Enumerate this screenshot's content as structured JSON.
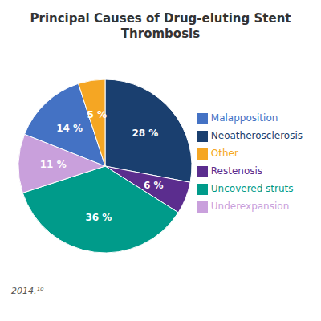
{
  "chart_data": {
    "type": "pie",
    "title": "Principal Causes of Drug-eluting Stent Thrombosis",
    "categories": [
      "Neoatherosclerosis",
      "Restenosis",
      "Uncovered struts",
      "Underexpansion",
      "Malapposition",
      "Other"
    ],
    "values": [
      28,
      6,
      36,
      11,
      14,
      5
    ],
    "value_labels": [
      "28 %",
      "6 %",
      "36 %",
      "11 %",
      "14 %",
      "5 %"
    ],
    "colors": [
      "#1a3f6f",
      "#5b2d8e",
      "#009b8a",
      "#c9a0dc",
      "#4472c4",
      "#f5a623"
    ],
    "data_labels": true,
    "legend": "right",
    "annotations": [
      "2014.¹⁰"
    ]
  }
}
